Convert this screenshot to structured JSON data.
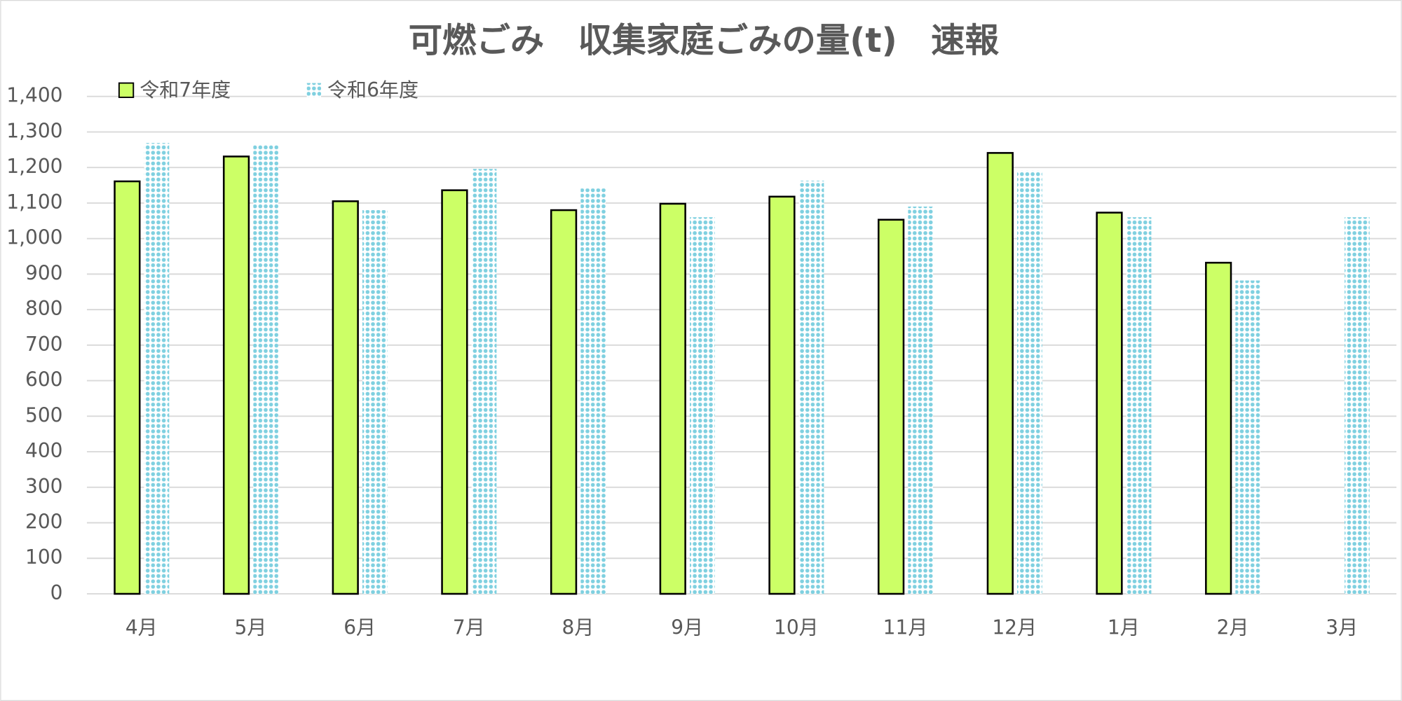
{
  "chart_data": {
    "type": "bar",
    "title": "可燃ごみ　収集家庭ごみの量(t)　速報",
    "categories": [
      "4月",
      "5月",
      "6月",
      "7月",
      "8月",
      "9月",
      "10月",
      "11月",
      "12月",
      "1月",
      "2月",
      "3月"
    ],
    "series": [
      {
        "name": "令和7年度",
        "color": "#ccff66",
        "values": [
          1161,
          1231,
          1105,
          1136,
          1080,
          1098,
          1118,
          1053,
          1241,
          1073,
          932,
          null
        ]
      },
      {
        "name": "令和6年度",
        "color": "#7fd0e0",
        "values": [
          1269,
          1264,
          1080,
          1196,
          1141,
          1060,
          1163,
          1090,
          1191,
          1060,
          882,
          1060
        ]
      }
    ],
    "ylim": [
      0,
      1400
    ],
    "yticks": [
      0,
      100,
      200,
      300,
      400,
      500,
      600,
      700,
      800,
      900,
      {
        "value": 1000,
        "label": "1,000"
      },
      {
        "value": 1100,
        "label": "1,100"
      },
      {
        "value": 1200,
        "label": "1,200"
      },
      {
        "value": 1300,
        "label": "1,300"
      },
      {
        "value": 1400,
        "label": "1,400"
      }
    ],
    "grid": true,
    "legend": "top-left"
  }
}
